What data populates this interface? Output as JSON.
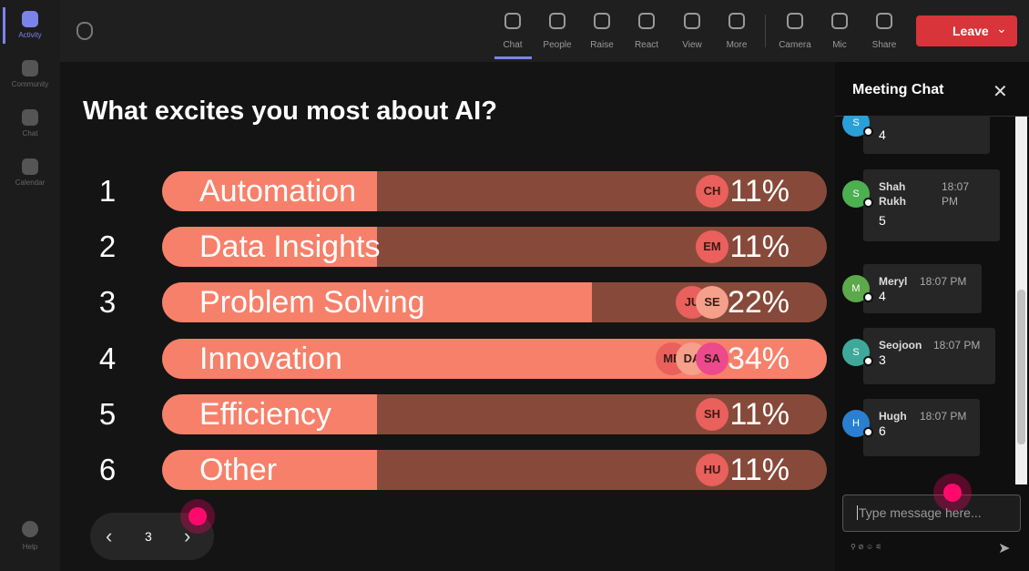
{
  "rail": {
    "items": [
      "Activity",
      "Community",
      "Chat",
      "Calendar"
    ],
    "help": "Help"
  },
  "toolbar": {
    "items": [
      "Chat",
      "People",
      "Raise",
      "React",
      "View",
      "More",
      "Camera",
      "Mic",
      "Share"
    ],
    "leave": "Leave"
  },
  "poll": {
    "question": "What excites you most about AI?",
    "options": [
      {
        "rank": "1",
        "label": "Automation",
        "percent": 11,
        "percent_label": "11%",
        "voters": [
          "CH"
        ]
      },
      {
        "rank": "2",
        "label": "Data Insights",
        "percent": 11,
        "percent_label": "11%",
        "voters": [
          "EM"
        ]
      },
      {
        "rank": "3",
        "label": "Problem Solving",
        "percent": 22,
        "percent_label": "22%",
        "voters": [
          "JU",
          "SE"
        ]
      },
      {
        "rank": "4",
        "label": "Innovation",
        "percent": 34,
        "percent_label": "34%",
        "voters": [
          "ME",
          "DA",
          "SA"
        ]
      },
      {
        "rank": "5",
        "label": "Efficiency",
        "percent": 11,
        "percent_label": "11%",
        "voters": [
          "SH"
        ]
      },
      {
        "rank": "6",
        "label": "Other",
        "percent": 11,
        "percent_label": "11%",
        "voters": [
          "HU"
        ]
      }
    ]
  },
  "pager": {
    "page": "3"
  },
  "chat": {
    "title": "Meeting Chat",
    "messages": [
      {
        "avatar": "S",
        "text": "4"
      },
      {
        "avatar": "S",
        "name": "Shah Rukh",
        "time": "18:07 PM",
        "text": "5"
      },
      {
        "avatar": "M",
        "name": "Meryl",
        "time": "18:07 PM",
        "text": "4"
      },
      {
        "avatar": "S",
        "name": "Seojoon",
        "time": "18:07 PM",
        "text": "3"
      },
      {
        "avatar": "H",
        "name": "Hugh",
        "time": "18:07 PM",
        "text": "6"
      }
    ],
    "placeholder": "Type message here..."
  }
}
